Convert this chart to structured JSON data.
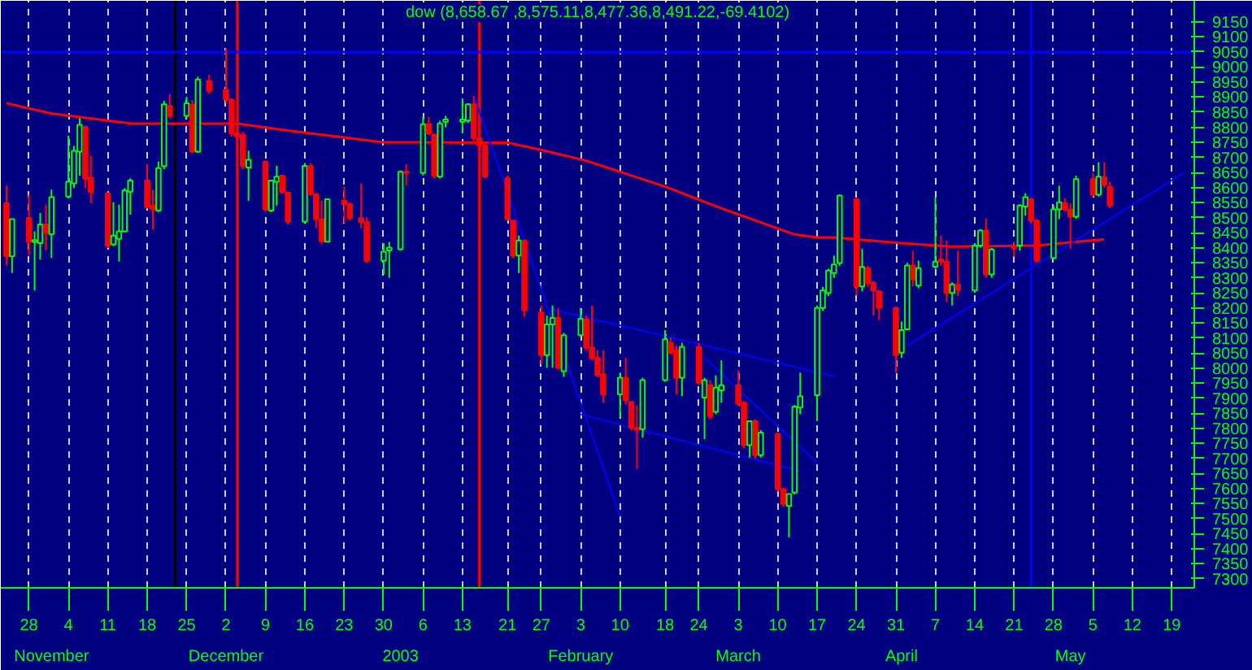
{
  "chart_data": {
    "type": "candlestick",
    "title": "dow (8,658.67 ,8,575.11,8,477.36,8,491.22,-69.4102)",
    "x": [
      "2002-10-24",
      "2002-10-25",
      "2002-10-28",
      "2002-10-29",
      "2002-10-30",
      "2002-10-31",
      "2002-11-01",
      "2002-11-04",
      "2002-11-05",
      "2002-11-06",
      "2002-11-07",
      "2002-11-08",
      "2002-11-11",
      "2002-11-12",
      "2002-11-13",
      "2002-11-14",
      "2002-11-15",
      "2002-11-18",
      "2002-11-19",
      "2002-11-20",
      "2002-11-21",
      "2002-11-22",
      "2002-11-25",
      "2002-11-26",
      "2002-11-27",
      "2002-11-29",
      "2002-12-02",
      "2002-12-03",
      "2002-12-04",
      "2002-12-05",
      "2002-12-06",
      "2002-12-09",
      "2002-12-10",
      "2002-12-11",
      "2002-12-12",
      "2002-12-13",
      "2002-12-16",
      "2002-12-17",
      "2002-12-18",
      "2002-12-19",
      "2002-12-20",
      "2002-12-23",
      "2002-12-24",
      "2002-12-26",
      "2002-12-27",
      "2002-12-30",
      "2002-12-31",
      "2003-01-02",
      "2003-01-03",
      "2003-01-06",
      "2003-01-07",
      "2003-01-08",
      "2003-01-09",
      "2003-01-10",
      "2003-01-13",
      "2003-01-14",
      "2003-01-15",
      "2003-01-16",
      "2003-01-17",
      "2003-01-21",
      "2003-01-22",
      "2003-01-23",
      "2003-01-24",
      "2003-01-27",
      "2003-01-28",
      "2003-01-29",
      "2003-01-30",
      "2003-01-31",
      "2003-02-03",
      "2003-02-04",
      "2003-02-05",
      "2003-02-06",
      "2003-02-07",
      "2003-02-10",
      "2003-02-11",
      "2003-02-12",
      "2003-02-13",
      "2003-02-14",
      "2003-02-18",
      "2003-02-19",
      "2003-02-20",
      "2003-02-21",
      "2003-02-24",
      "2003-02-25",
      "2003-02-26",
      "2003-02-27",
      "2003-02-28",
      "2003-03-03",
      "2003-03-04",
      "2003-03-05",
      "2003-03-06",
      "2003-03-07",
      "2003-03-10",
      "2003-03-11",
      "2003-03-12",
      "2003-03-13",
      "2003-03-14",
      "2003-03-17",
      "2003-03-18",
      "2003-03-19",
      "2003-03-20",
      "2003-03-21",
      "2003-03-24",
      "2003-03-25",
      "2003-03-26",
      "2003-03-27",
      "2003-03-28",
      "2003-03-31",
      "2003-04-01",
      "2003-04-02",
      "2003-04-03",
      "2003-04-04",
      "2003-04-07",
      "2003-04-08",
      "2003-04-09",
      "2003-04-10",
      "2003-04-11",
      "2003-04-14",
      "2003-04-15",
      "2003-04-16",
      "2003-04-17",
      "2003-04-21",
      "2003-04-22",
      "2003-04-23",
      "2003-04-24",
      "2003-04-25",
      "2003-04-28",
      "2003-04-29",
      "2003-04-30",
      "2003-05-01",
      "2003-05-02",
      "2003-05-05",
      "2003-05-06",
      "2003-05-07",
      "2003-05-08"
    ],
    "ohlc": [
      [
        8548,
        8606,
        8341,
        8371
      ],
      [
        8371,
        8495,
        8316,
        8495
      ],
      [
        8498,
        8576,
        8374,
        8419
      ],
      [
        8419,
        8454,
        8258,
        8425
      ],
      [
        8415,
        8515,
        8361,
        8477
      ],
      [
        8477,
        8543,
        8391,
        8449
      ],
      [
        8445,
        8593,
        8366,
        8568
      ],
      [
        8570,
        8772,
        8564,
        8619
      ],
      [
        8614,
        8738,
        8598,
        8722
      ],
      [
        8719,
        8830,
        8639,
        8808
      ],
      [
        8802,
        8802,
        8598,
        8629
      ],
      [
        8633,
        8706,
        8548,
        8585
      ],
      [
        8581,
        8581,
        8399,
        8407
      ],
      [
        8411,
        8551,
        8405,
        8440
      ],
      [
        8429,
        8543,
        8354,
        8454
      ],
      [
        8454,
        8598,
        8450,
        8590
      ],
      [
        8586,
        8631,
        8510,
        8623
      ],
      [
        8623,
        8677,
        8530,
        8535
      ],
      [
        8540,
        8593,
        8460,
        8527
      ],
      [
        8523,
        8686,
        8518,
        8664
      ],
      [
        8671,
        8888,
        8660,
        8876
      ],
      [
        8871,
        8911,
        8830,
        8838
      ],
      [
        8838,
        8901,
        8830,
        8880
      ],
      [
        8875,
        8890,
        8714,
        8719
      ],
      [
        8719,
        8968,
        8715,
        8959
      ],
      [
        8954,
        8974,
        8911,
        8921
      ],
      [
        8925,
        9062,
        8880,
        8893
      ],
      [
        8891,
        8896,
        8769,
        8780
      ],
      [
        8780,
        8846,
        8699,
        8769
      ],
      [
        8775,
        8785,
        8660,
        8672
      ],
      [
        8666,
        8722,
        8556,
        8692
      ],
      [
        8686,
        8689,
        8520,
        8527
      ],
      [
        8523,
        8623,
        8518,
        8623
      ],
      [
        8619,
        8672,
        8540,
        8636
      ],
      [
        8639,
        8639,
        8580,
        8585
      ],
      [
        8583,
        8583,
        8477,
        8487
      ],
      [
        8487,
        8681,
        8482,
        8672
      ],
      [
        8672,
        8681,
        8573,
        8578
      ],
      [
        8578,
        8580,
        8465,
        8495
      ],
      [
        8495,
        8556,
        8415,
        8422
      ],
      [
        8420,
        8561,
        8420,
        8561
      ],
      [
        8556,
        8603,
        8482,
        8545
      ],
      [
        8545,
        8550,
        8490,
        8498
      ],
      [
        8498,
        8613,
        8465,
        8485
      ],
      [
        8485,
        8502,
        8350,
        8356
      ],
      [
        8357,
        8415,
        8311,
        8387
      ],
      [
        8391,
        8419,
        8300,
        8400
      ],
      [
        8395,
        8656,
        8390,
        8652
      ],
      [
        8652,
        8677,
        8606,
        8648
      ],
      [
        8648,
        8835,
        8640,
        8810
      ],
      [
        8810,
        8835,
        8775,
        8780
      ],
      [
        8775,
        8780,
        8630,
        8639
      ],
      [
        8636,
        8822,
        8630,
        8813
      ],
      [
        8818,
        8838,
        8800,
        8826
      ],
      [
        8818,
        8896,
        8780,
        8826
      ],
      [
        8822,
        8880,
        8815,
        8876
      ],
      [
        8876,
        8904,
        8755,
        8764
      ],
      [
        8764,
        8772,
        8730,
        8739
      ],
      [
        8739,
        8747,
        8631,
        8636
      ],
      [
        8631,
        8640,
        8490,
        8495
      ],
      [
        8490,
        8490,
        8366,
        8374
      ],
      [
        8374,
        8440,
        8316,
        8424
      ],
      [
        8424,
        8427,
        8172,
        8192
      ],
      [
        8184,
        8208,
        8013,
        8043
      ],
      [
        8043,
        8175,
        8001,
        8145
      ],
      [
        8145,
        8208,
        8001,
        8167
      ],
      [
        8167,
        8200,
        7995,
        8001
      ],
      [
        7990,
        8117,
        7971,
        8109
      ],
      [
        8109,
        8200,
        8109,
        8164
      ],
      [
        8162,
        8175,
        8060,
        8068
      ],
      [
        8068,
        8208,
        8026,
        8034
      ],
      [
        8034,
        8059,
        7970,
        7976
      ],
      [
        7980,
        8059,
        7885,
        7913
      ],
      [
        7913,
        7985,
        7835,
        7968
      ],
      [
        7968,
        8034,
        7880,
        7893
      ],
      [
        7888,
        7890,
        7794,
        7802
      ],
      [
        7802,
        7877,
        7665,
        7794
      ],
      [
        7797,
        7968,
        7769,
        7960
      ],
      [
        7960,
        8126,
        7955,
        8096
      ],
      [
        8084,
        8101,
        8046,
        8051
      ],
      [
        8059,
        8076,
        7913,
        7968
      ],
      [
        7968,
        8084,
        7907,
        8071
      ],
      [
        8071,
        8084,
        7945,
        7951
      ],
      [
        7902,
        7968,
        7764,
        7960
      ],
      [
        7943,
        7960,
        7830,
        7840
      ],
      [
        7855,
        7976,
        7847,
        7935
      ],
      [
        7926,
        8026,
        7885,
        7943
      ],
      [
        7943,
        7993,
        7875,
        7882
      ],
      [
        7885,
        7890,
        7735,
        7744
      ],
      [
        7744,
        7824,
        7703,
        7824
      ],
      [
        7824,
        7830,
        7700,
        7711
      ],
      [
        7711,
        7794,
        7703,
        7786
      ],
      [
        7781,
        7786,
        7590,
        7598
      ],
      [
        7598,
        7603,
        7540,
        7549
      ],
      [
        7542,
        7582,
        7438,
        7582
      ],
      [
        7587,
        7877,
        7580,
        7872
      ],
      [
        7869,
        7985,
        7847,
        7907
      ],
      [
        7910,
        8208,
        7824,
        8200
      ],
      [
        8200,
        8270,
        8190,
        8258
      ],
      [
        8250,
        8330,
        8240,
        8324
      ],
      [
        8316,
        8374,
        8300,
        8344
      ],
      [
        8349,
        8577,
        8340,
        8573
      ],
      [
        8561,
        8565,
        8241,
        8271
      ],
      [
        8271,
        8396,
        8255,
        8336
      ],
      [
        8332,
        8340,
        8270,
        8283
      ],
      [
        8283,
        8290,
        8175,
        8258
      ],
      [
        8255,
        8260,
        8159,
        8200
      ],
      [
        8200,
        8205,
        7985,
        8043
      ],
      [
        8051,
        8155,
        8034,
        8126
      ],
      [
        8129,
        8350,
        8125,
        8341
      ],
      [
        8341,
        8390,
        8271,
        8294
      ],
      [
        8274,
        8357,
        8265,
        8332
      ],
      [
        8337,
        8568,
        8330,
        8354
      ],
      [
        8361,
        8440,
        8340,
        8354
      ],
      [
        8354,
        8424,
        8220,
        8250
      ],
      [
        8250,
        8285,
        8208,
        8278
      ],
      [
        8278,
        8390,
        8240,
        8261
      ],
      [
        8258,
        8415,
        8250,
        8407
      ],
      [
        8407,
        8462,
        8400,
        8457
      ],
      [
        8457,
        8497,
        8300,
        8311
      ],
      [
        8311,
        8399,
        8300,
        8394
      ],
      [
        8407,
        8420,
        8370,
        8399
      ],
      [
        8407,
        8545,
        8390,
        8540
      ],
      [
        8537,
        8581,
        8507,
        8568
      ],
      [
        8561,
        8565,
        8480,
        8490
      ],
      [
        8490,
        8495,
        8350,
        8357
      ],
      [
        8366,
        8540,
        8360,
        8527
      ],
      [
        8527,
        8606,
        8495,
        8551
      ],
      [
        8548,
        8565,
        8520,
        8527
      ],
      [
        8527,
        8548,
        8396,
        8503
      ],
      [
        8503,
        8639,
        8496,
        8628
      ],
      [
        8628,
        8648,
        8570,
        8576
      ],
      [
        8576,
        8684,
        8570,
        8636
      ],
      [
        8634,
        8684,
        8600,
        8609
      ],
      [
        8603,
        8619,
        8531,
        8540
      ]
    ],
    "colors": [
      "#ff0000",
      "#00ff00",
      "#ff0000",
      "#00ff00",
      "#00ff00",
      "#ff0000",
      "#00ff00",
      "#00ff00",
      "#00ff00",
      "#00ff00",
      "#ff0000",
      "#ff0000",
      "#ff0000",
      "#00ff00",
      "#00ff00",
      "#00ff00",
      "#00ff00",
      "#ff0000",
      "#ff0000",
      "#00ff00",
      "#00ff00",
      "#ff0000",
      "#00ff00",
      "#ff0000",
      "#00ff00",
      "#ff0000",
      "#ff0000",
      "#ff0000",
      "#ff0000",
      "#ff0000",
      "#00ff00",
      "#ff0000",
      "#00ff00",
      "#00ff00",
      "#ff0000",
      "#ff0000",
      "#00ff00",
      "#ff0000",
      "#ff0000",
      "#ff0000",
      "#00ff00",
      "#ff0000",
      "#ff0000",
      "#ff0000",
      "#ff0000",
      "#00ff00",
      "#00ff00",
      "#00ff00",
      "#ff0000",
      "#00ff00",
      "#ff0000",
      "#ff0000",
      "#00ff00",
      "#00ff00",
      "#00ff00",
      "#00ff00",
      "#ff0000",
      "#ff0000",
      "#ff0000",
      "#ff0000",
      "#ff0000",
      "#00ff00",
      "#ff0000",
      "#ff0000",
      "#00ff00",
      "#00ff00",
      "#ff0000",
      "#00ff00",
      "#00ff00",
      "#ff0000",
      "#ff0000",
      "#ff0000",
      "#ff0000",
      "#00ff00",
      "#ff0000",
      "#ff0000",
      "#ff0000",
      "#00ff00",
      "#00ff00",
      "#ff0000",
      "#ff0000",
      "#00ff00",
      "#ff0000",
      "#00ff00",
      "#ff0000",
      "#00ff00",
      "#00ff00",
      "#ff0000",
      "#ff0000",
      "#00ff00",
      "#ff0000",
      "#00ff00",
      "#ff0000",
      "#ff0000",
      "#00ff00",
      "#00ff00",
      "#00ff00",
      "#00ff00",
      "#00ff00",
      "#00ff00",
      "#00ff00",
      "#00ff00",
      "#ff0000",
      "#00ff00",
      "#ff0000",
      "#ff0000",
      "#ff0000",
      "#ff0000",
      "#00ff00",
      "#00ff00",
      "#ff0000",
      "#00ff00",
      "#00ff00",
      "#ff0000",
      "#ff0000",
      "#00ff00",
      "#ff0000",
      "#00ff00",
      "#00ff00",
      "#ff0000",
      "#00ff00",
      "#ff0000",
      "#00ff00",
      "#00ff00",
      "#ff0000",
      "#ff0000",
      "#00ff00",
      "#00ff00",
      "#ff0000",
      "#ff0000",
      "#00ff00",
      "#ff0000",
      "#00ff00",
      "#ff0000",
      "#ff0000"
    ],
    "series": [
      {
        "type": "line",
        "color": "#ff0000",
        "x": [
          "2002-10-24",
          "2002-11-01",
          "2002-11-15",
          "2002-12-04",
          "2002-12-13",
          "2002-12-30",
          "2003-01-21",
          "2003-01-27",
          "2003-02-04",
          "2003-02-18",
          "2003-02-28",
          "2003-03-13",
          "2003-03-17",
          "2003-03-20",
          "2003-04-01",
          "2003-04-10",
          "2003-04-25",
          "2003-05-02",
          "2003-05-07"
        ],
        "values": [
          8880,
          8846,
          8813,
          8812,
          8789,
          8750,
          8749,
          8725,
          8689,
          8603,
          8531,
          8444,
          8434,
          8434,
          8415,
          8404,
          8407,
          8420,
          8427
        ]
      },
      {
        "type": "line",
        "color": "#0000ff",
        "x": [
          "2003-04-02",
          "2003-05-21"
        ],
        "values": [
          8075,
          8648
        ]
      },
      {
        "type": "line",
        "color": "#0000ff",
        "x": [
          "2003-01-28",
          "2003-03-20"
        ],
        "values": [
          8200,
          7973
        ]
      },
      {
        "type": "line",
        "color": "#0000ff",
        "x": [
          "2003-02-03",
          "2003-03-14"
        ],
        "values": [
          7847,
          7658
        ]
      },
      {
        "type": "line",
        "color": "#0000ff",
        "x": [
          "2003-01-15",
          "2003-02-10"
        ],
        "values": [
          8905,
          7508
        ]
      },
      {
        "type": "line",
        "color": "#0000ff",
        "x": [
          "2003-02-25",
          "2003-03-17"
        ],
        "values": [
          8034,
          7686
        ]
      }
    ],
    "ref_lines": [
      {
        "axis": "x",
        "value": "2002-11-23",
        "color": "#000000"
      },
      {
        "axis": "x",
        "value": "2002-12-04",
        "color": "#ff0000"
      },
      {
        "axis": "x",
        "value": "2003-01-16",
        "color": "#ff0000"
      },
      {
        "axis": "x",
        "value": "2003-04-24",
        "color": "#0000ff"
      },
      {
        "axis": "y",
        "value": 9050,
        "color": "#0000ff"
      }
    ],
    "annotations": [
      "November",
      "December",
      "2003",
      "February",
      "March",
      "April",
      "May"
    ],
    "xlim": [
      "2002-10-23",
      "2003-05-23"
    ],
    "xticks": [
      {
        "value": "2002-10-28",
        "label": "28"
      },
      {
        "value": "2002-11-04",
        "label": "4"
      },
      {
        "value": "2002-11-11",
        "label": "11"
      },
      {
        "value": "2002-11-18",
        "label": "18"
      },
      {
        "value": "2002-11-25",
        "label": "25"
      },
      {
        "value": "2002-12-02",
        "label": "2"
      },
      {
        "value": "2002-12-09",
        "label": "9"
      },
      {
        "value": "2002-12-16",
        "label": "16"
      },
      {
        "value": "2002-12-23",
        "label": "23"
      },
      {
        "value": "2002-12-30",
        "label": "30"
      },
      {
        "value": "2003-01-06",
        "label": "6"
      },
      {
        "value": "2003-01-13",
        "label": "13"
      },
      {
        "value": "2003-01-21",
        "label": "21"
      },
      {
        "value": "2003-01-27",
        "label": "27"
      },
      {
        "value": "2003-02-03",
        "label": "3"
      },
      {
        "value": "2003-02-10",
        "label": "10"
      },
      {
        "value": "2003-02-18",
        "label": "18"
      },
      {
        "value": "2003-02-24",
        "label": "24"
      },
      {
        "value": "2003-03-03",
        "label": "3"
      },
      {
        "value": "2003-03-10",
        "label": "10"
      },
      {
        "value": "2003-03-17",
        "label": "17"
      },
      {
        "value": "2003-03-24",
        "label": "24"
      },
      {
        "value": "2003-03-31",
        "label": "31"
      },
      {
        "value": "2003-04-07",
        "label": "7"
      },
      {
        "value": "2003-04-14",
        "label": "14"
      },
      {
        "value": "2003-04-21",
        "label": "21"
      },
      {
        "value": "2003-04-28",
        "label": "28"
      },
      {
        "value": "2003-05-05",
        "label": "5"
      },
      {
        "value": "2003-05-12",
        "label": "12"
      },
      {
        "value": "2003-05-19",
        "label": "19"
      }
    ],
    "ylim": [
      7270,
      9220
    ],
    "yticks": [
      7300,
      7350,
      7400,
      7450,
      7500,
      7550,
      7600,
      7650,
      7700,
      7750,
      7800,
      7850,
      7900,
      7950,
      8000,
      8050,
      8100,
      8150,
      8200,
      8250,
      8300,
      8350,
      8400,
      8450,
      8500,
      8550,
      8600,
      8650,
      8700,
      8750,
      8800,
      8850,
      8900,
      8950,
      9000,
      9050,
      9100,
      9150
    ],
    "grid": "x"
  }
}
